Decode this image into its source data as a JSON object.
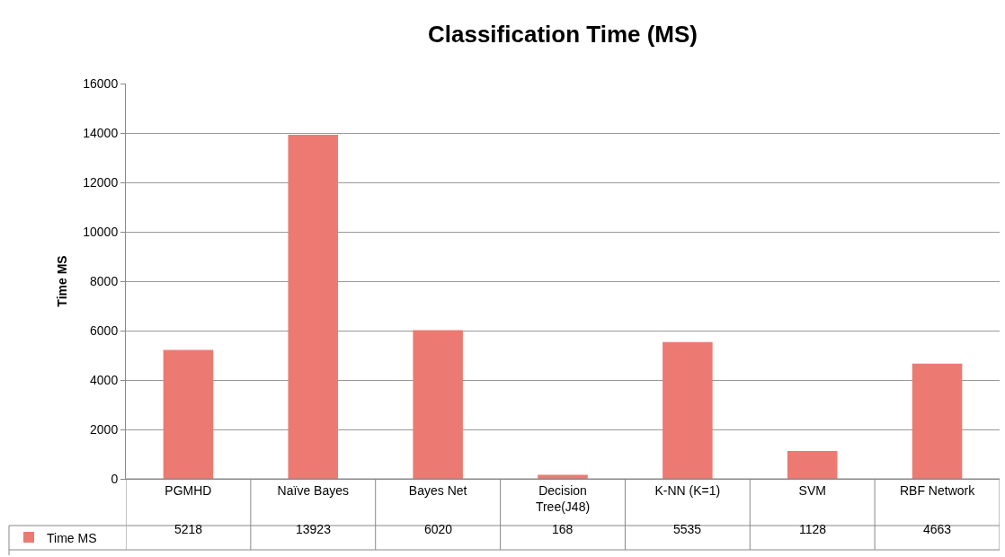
{
  "chart_data": {
    "type": "bar",
    "title": "Classification Time (MS)",
    "ylabel": "Time MS",
    "categories": [
      "PGMHD",
      "Naïve Bayes",
      "Bayes Net",
      "Decision Tree(J48)",
      "K-NN (K=1)",
      "SVM",
      "RBF Network"
    ],
    "series": [
      {
        "name": "Time MS",
        "color": "#ec7a72",
        "values": [
          5218,
          13923,
          6020,
          168,
          5535,
          1128,
          4663
        ]
      }
    ],
    "ylim": [
      0,
      16000
    ],
    "yticks": [
      0,
      2000,
      4000,
      6000,
      8000,
      10000,
      12000,
      14000,
      16000
    ],
    "grid": "y",
    "legend": "bottom left",
    "data_labels": true
  }
}
